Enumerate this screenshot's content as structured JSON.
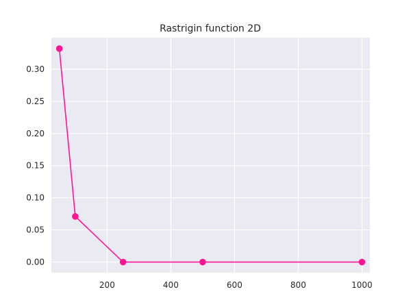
{
  "chart_data": {
    "type": "line",
    "title": "Rastrigin function 2D",
    "xlabel": "",
    "ylabel": "",
    "xlim": [
      25,
      1025
    ],
    "ylim": [
      -0.0166,
      0.349
    ],
    "xticks": [
      200,
      400,
      600,
      800,
      1000
    ],
    "yticks": [
      0.0,
      0.05,
      0.1,
      0.15,
      0.2,
      0.25,
      0.3
    ],
    "ytick_labels": [
      "0.00",
      "0.05",
      "0.10",
      "0.15",
      "0.20",
      "0.25",
      "0.30"
    ],
    "grid": true,
    "legend": "none",
    "series": [
      {
        "color": "#ff1493",
        "marker": "circle",
        "x": [
          50,
          100,
          250,
          500,
          1000
        ],
        "y": [
          0.332,
          0.071,
          0.0,
          0.0,
          0.0
        ]
      }
    ]
  },
  "colors": {
    "plot_background": "#eaeaf2",
    "grid": "#ffffff",
    "text": "#262626"
  }
}
